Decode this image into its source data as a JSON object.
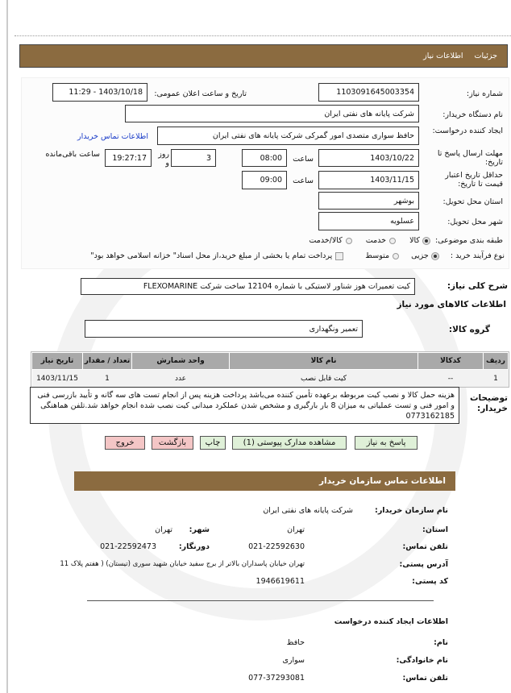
{
  "header": {
    "tab_details": "جزئیات",
    "tab_info": "اطلاعات نیاز"
  },
  "form": {
    "need_number_label": "شماره نیاز:",
    "need_number": "1103091645003354",
    "announce_label": "تاریخ و ساعت اعلان عمومی:",
    "announce_value": "1403/10/18 - 11:29",
    "buyer_label": "نام دستگاه خریدار:",
    "buyer": "شرکت پایانه های نفتی ایران",
    "creator_label": "ایجاد کننده درخواست:",
    "creator": "حافظ سواری  متصدی امور گمرکی شرکت پایانه های نفتی ایران",
    "buyer_contact_link": "اطلاعات تماس خریدار",
    "deadline_label": "مهلت ارسال پاسخ تا تاریخ:",
    "deadline_date": "1403/10/22",
    "time_label": "ساعت",
    "deadline_time": "08:00",
    "days": "3",
    "days_label": "روز و",
    "remaining": "19:27:17",
    "remaining_label": "ساعت باقی‌مانده",
    "validity_label": "حداقل تاریخ اعتبار قیمت تا تاریخ:",
    "validity_date": "1403/11/15",
    "validity_time": "09:00",
    "province_label": "استان محل تحویل:",
    "province": "بوشهر",
    "city_label": "شهر محل تحویل:",
    "city": "عسلویه",
    "category_label": "طبقه بندی موضوعی:",
    "category_options": [
      "کالا",
      "خدمت",
      "کالا/خدمت"
    ],
    "category_selected": "کالا",
    "process_label": "نوع فرآیند خرید :",
    "process_options": [
      "جزیی",
      "متوسط"
    ],
    "process_selected": "جزیی",
    "payment_note": "پرداخت تمام یا بخشی از مبلغ خرید،از محل اسناد\" خزانه اسلامی خواهد بود\""
  },
  "summary": {
    "label": "شرح کلی نیاز:",
    "value": "کیت تعمیرات هوز شناور لاستیکی با شماره 12104 ساخت شرکت FLEXOMARINE"
  },
  "goods": {
    "title": "اطلاعات کالاهای مورد نیاز",
    "group_label": "گروه کالا:",
    "group": "تعمیر ونگهداری",
    "columns": [
      "ردیف",
      "کدکالا",
      "نام کالا",
      "واحد شمارش",
      "تعداد / مقدار",
      "تاریخ نیاز"
    ],
    "rows": [
      [
        "1",
        "--",
        "کیت قابل نصب",
        "عدد",
        "1",
        "1403/11/15"
      ]
    ]
  },
  "notes": {
    "label": "توضیحات خریدار:",
    "value": "هزینه حمل کالا و نصب کیت مربوطه برعهده تأمین کننده می‌باشد پرداخت هزینه پس از انجام تست های سه گانه و تأیید بازرسی فنی و امور فنی و تست عملیاتی به میزان 8 بار بارگیری و مشخص شدن عملکرد میدانی کیت نصب شده انجام خواهد شد.تلفن هماهنگی 0773162185"
  },
  "buttons": {
    "reply": "پاسخ به نیاز",
    "attachments": "مشاهده مدارک پیوستی (1)",
    "print": "چاپ",
    "back": "بازگشت",
    "exit": "خروج"
  },
  "contact": {
    "title": "اطلاعات تماس سازمان خریدار",
    "org_label": "نام سازمان خریدار:",
    "org": "شرکت پایانه های نفتی ایران",
    "province_label": "استان:",
    "province": "تهران",
    "city_label": "شهر:",
    "city": "تهران",
    "phone_label": "تلفن تماس:",
    "phone": "021-22592630",
    "fax_label": "دورنگار:",
    "fax": "021-22592473",
    "address_label": "آدرس پستی:",
    "address": "تهران خیابان پاسداران بالاتر از برج سفید خیابان شهید سوری (تیستان) ( هفتم پلاک 11",
    "postal_label": "کد پستی:",
    "postal": "1946619611",
    "creator_title": "اطلاعات ایجاد کننده درخواست",
    "name_label": "نام:",
    "name": "حافظ",
    "family_label": "نام خانوادگی:",
    "family": "سواری",
    "creator_phone_label": "تلفن تماس:",
    "creator_phone": "077-37293081"
  },
  "colors": {
    "header_bar": "#8b6b40",
    "button_green": "#dff0d8",
    "button_red": "#f4c6c6"
  }
}
